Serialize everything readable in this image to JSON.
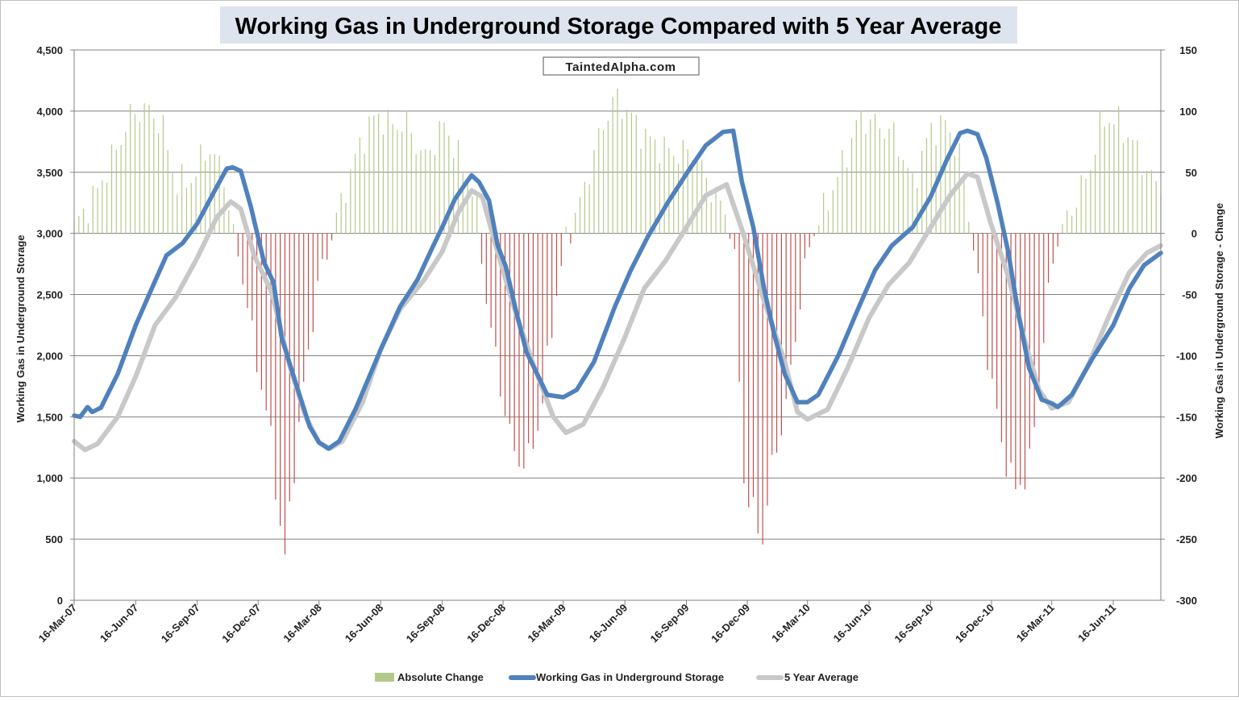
{
  "chart_data": {
    "type": "line",
    "title": "Working Gas in Underground Storage Compared with 5 Year Average",
    "watermark": "TaintedAlpha.com",
    "ylabel": "Working Gas in Underground Storage",
    "y2label": "Working Gas in Underground Storage - Change",
    "ylim": [
      0,
      4500
    ],
    "yticks": [
      "0",
      "500",
      "1,000",
      "1,500",
      "2,000",
      "2,500",
      "3,000",
      "3,500",
      "4,000",
      "4,500"
    ],
    "y2lim": [
      -300,
      150
    ],
    "y2ticks": [
      "-300",
      "-250",
      "-200",
      "-150",
      "-100",
      "-50",
      "0",
      "50",
      "100",
      "150"
    ],
    "xlim": [
      "2007-03-16",
      "2011-08-26"
    ],
    "xticks": [
      {
        "label": "16-Mar-07",
        "date": "2007-03-16"
      },
      {
        "label": "16-Jun-07",
        "date": "2007-06-16"
      },
      {
        "label": "16-Sep-07",
        "date": "2007-09-16"
      },
      {
        "label": "16-Dec-07",
        "date": "2007-12-16"
      },
      {
        "label": "16-Mar-08",
        "date": "2008-03-16"
      },
      {
        "label": "16-Jun-08",
        "date": "2008-06-16"
      },
      {
        "label": "16-Sep-08",
        "date": "2008-09-16"
      },
      {
        "label": "16-Dec-08",
        "date": "2008-12-16"
      },
      {
        "label": "16-Mar-09",
        "date": "2009-03-16"
      },
      {
        "label": "16-Jun-09",
        "date": "2009-06-16"
      },
      {
        "label": "16-Sep-09",
        "date": "2009-09-16"
      },
      {
        "label": "16-Dec-09",
        "date": "2009-12-16"
      },
      {
        "label": "16-Mar-10",
        "date": "2010-03-16"
      },
      {
        "label": "16-Jun-10",
        "date": "2010-06-16"
      },
      {
        "label": "16-Sep-10",
        "date": "2010-09-16"
      },
      {
        "label": "16-Dec-10",
        "date": "2010-12-16"
      },
      {
        "label": "16-Mar-11",
        "date": "2011-03-16"
      },
      {
        "label": "16-Jun-11",
        "date": "2011-06-16"
      }
    ],
    "grid": true,
    "legend_position": "bottom",
    "colors": {
      "positive_change": "#b5c98a",
      "negative_change": "#c0504d",
      "storage": "#4f81bd",
      "average": "#c8c8c8",
      "title_bg": "#dde4ee",
      "grid": "#808080"
    },
    "series": [
      {
        "name": "Absolute Change",
        "kind": "bar",
        "axis": "right",
        "keyframes": [
          [
            "2007-03-16",
            5
          ],
          [
            "2007-04-15",
            30
          ],
          [
            "2007-05-15",
            65
          ],
          [
            "2007-06-10",
            98
          ],
          [
            "2007-07-01",
            102
          ],
          [
            "2007-07-25",
            90
          ],
          [
            "2007-08-15",
            40
          ],
          [
            "2007-09-10",
            45
          ],
          [
            "2007-10-01",
            72
          ],
          [
            "2007-10-25",
            50
          ],
          [
            "2007-11-10",
            -5
          ],
          [
            "2007-11-25",
            -40
          ],
          [
            "2007-12-10",
            -95
          ],
          [
            "2008-01-01",
            -155
          ],
          [
            "2008-01-24",
            -270
          ],
          [
            "2008-02-10",
            -180
          ],
          [
            "2008-02-28",
            -100
          ],
          [
            "2008-03-15",
            -40
          ],
          [
            "2008-03-28",
            -15
          ],
          [
            "2008-04-15",
            20
          ],
          [
            "2008-05-15",
            72
          ],
          [
            "2008-06-10",
            98
          ],
          [
            "2008-07-01",
            88
          ],
          [
            "2008-07-25",
            90
          ],
          [
            "2008-08-20",
            60
          ],
          [
            "2008-09-20",
            90
          ],
          [
            "2008-10-15",
            55
          ],
          [
            "2008-11-05",
            30
          ],
          [
            "2008-11-20",
            -50
          ],
          [
            "2008-12-10",
            -120
          ],
          [
            "2009-01-01",
            -180
          ],
          [
            "2009-01-20",
            -190
          ],
          [
            "2009-02-10",
            -150
          ],
          [
            "2009-02-28",
            -70
          ],
          [
            "2009-03-20",
            -5
          ],
          [
            "2009-04-10",
            25
          ],
          [
            "2009-05-10",
            82
          ],
          [
            "2009-06-01",
            112
          ],
          [
            "2009-06-20",
            100
          ],
          [
            "2009-07-15",
            80
          ],
          [
            "2009-08-10",
            70
          ],
          [
            "2009-09-01",
            65
          ],
          [
            "2009-09-25",
            68
          ],
          [
            "2009-10-20",
            40
          ],
          [
            "2009-11-10",
            20
          ],
          [
            "2009-11-25",
            1
          ],
          [
            "2009-12-10",
            -200
          ],
          [
            "2009-12-25",
            -230
          ],
          [
            "2010-01-08",
            -250
          ],
          [
            "2010-01-25",
            -180
          ],
          [
            "2010-02-10",
            -150
          ],
          [
            "2010-03-01",
            -70
          ],
          [
            "2010-03-20",
            -5
          ],
          [
            "2010-04-10",
            20
          ],
          [
            "2010-05-10",
            60
          ],
          [
            "2010-06-01",
            95
          ],
          [
            "2010-06-25",
            90
          ],
          [
            "2010-07-25",
            80
          ],
          [
            "2010-08-20",
            40
          ],
          [
            "2010-09-16",
            85
          ],
          [
            "2010-10-10",
            90
          ],
          [
            "2010-11-01",
            60
          ],
          [
            "2010-11-20",
            -15
          ],
          [
            "2010-12-10",
            -100
          ],
          [
            "2011-01-01",
            -175
          ],
          [
            "2011-01-20",
            -210
          ],
          [
            "2011-02-10",
            -195
          ],
          [
            "2011-03-01",
            -100
          ],
          [
            "2011-03-20",
            -10
          ],
          [
            "2011-04-15",
            20
          ],
          [
            "2011-05-10",
            50
          ],
          [
            "2011-06-01",
            95
          ],
          [
            "2011-06-25",
            90
          ],
          [
            "2011-07-20",
            70
          ],
          [
            "2011-08-10",
            45
          ],
          [
            "2011-08-26",
            40
          ]
        ]
      },
      {
        "name": "Working Gas in Underground Storage",
        "kind": "line",
        "axis": "left",
        "keyframes": [
          [
            "2007-03-16",
            1510
          ],
          [
            "2007-03-25",
            1500
          ],
          [
            "2007-04-05",
            1580
          ],
          [
            "2007-04-12",
            1540
          ],
          [
            "2007-04-25",
            1575
          ],
          [
            "2007-05-20",
            1850
          ],
          [
            "2007-06-16",
            2250
          ],
          [
            "2007-07-10",
            2550
          ],
          [
            "2007-08-01",
            2820
          ],
          [
            "2007-08-25",
            2920
          ],
          [
            "2007-09-16",
            3080
          ],
          [
            "2007-10-10",
            3330
          ],
          [
            "2007-10-30",
            3530
          ],
          [
            "2007-11-08",
            3540
          ],
          [
            "2007-11-20",
            3510
          ],
          [
            "2007-12-05",
            3220
          ],
          [
            "2007-12-25",
            2760
          ],
          [
            "2008-01-08",
            2600
          ],
          [
            "2008-01-20",
            2150
          ],
          [
            "2008-02-10",
            1780
          ],
          [
            "2008-03-02",
            1420
          ],
          [
            "2008-03-16",
            1290
          ],
          [
            "2008-03-30",
            1240
          ],
          [
            "2008-04-15",
            1300
          ],
          [
            "2008-05-10",
            1570
          ],
          [
            "2008-06-16",
            2050
          ],
          [
            "2008-07-15",
            2400
          ],
          [
            "2008-08-10",
            2620
          ],
          [
            "2008-09-01",
            2880
          ],
          [
            "2008-09-16",
            3050
          ],
          [
            "2008-10-05",
            3280
          ],
          [
            "2008-10-20",
            3400
          ],
          [
            "2008-10-30",
            3475
          ],
          [
            "2008-11-10",
            3420
          ],
          [
            "2008-11-25",
            3270
          ],
          [
            "2008-12-08",
            2900
          ],
          [
            "2008-12-20",
            2730
          ],
          [
            "2009-01-05",
            2350
          ],
          [
            "2009-01-20",
            2030
          ],
          [
            "2009-02-05",
            1850
          ],
          [
            "2009-02-20",
            1680
          ],
          [
            "2009-03-16",
            1660
          ],
          [
            "2009-04-05",
            1720
          ],
          [
            "2009-05-01",
            1950
          ],
          [
            "2009-06-01",
            2400
          ],
          [
            "2009-06-25",
            2700
          ],
          [
            "2009-07-20",
            2970
          ],
          [
            "2009-08-20",
            3260
          ],
          [
            "2009-09-20",
            3520
          ],
          [
            "2009-10-15",
            3720
          ],
          [
            "2009-11-10",
            3830
          ],
          [
            "2009-11-25",
            3840
          ],
          [
            "2009-12-08",
            3420
          ],
          [
            "2009-12-25",
            3050
          ],
          [
            "2010-01-10",
            2550
          ],
          [
            "2010-01-25",
            2180
          ],
          [
            "2010-02-10",
            1850
          ],
          [
            "2010-03-01",
            1620
          ],
          [
            "2010-03-16",
            1620
          ],
          [
            "2010-04-01",
            1680
          ],
          [
            "2010-05-01",
            2000
          ],
          [
            "2010-06-01",
            2400
          ],
          [
            "2010-06-25",
            2700
          ],
          [
            "2010-07-20",
            2900
          ],
          [
            "2010-08-20",
            3050
          ],
          [
            "2010-09-16",
            3300
          ],
          [
            "2010-10-10",
            3600
          ],
          [
            "2010-10-30",
            3820
          ],
          [
            "2010-11-10",
            3840
          ],
          [
            "2010-11-25",
            3810
          ],
          [
            "2010-12-08",
            3620
          ],
          [
            "2010-12-25",
            3250
          ],
          [
            "2011-01-10",
            2850
          ],
          [
            "2011-01-25",
            2350
          ],
          [
            "2011-02-10",
            1900
          ],
          [
            "2011-03-01",
            1640
          ],
          [
            "2011-03-16",
            1610
          ],
          [
            "2011-03-25",
            1580
          ],
          [
            "2011-04-15",
            1680
          ],
          [
            "2011-05-15",
            1970
          ],
          [
            "2011-06-16",
            2250
          ],
          [
            "2011-07-10",
            2550
          ],
          [
            "2011-08-01",
            2740
          ],
          [
            "2011-08-26",
            2840
          ]
        ]
      },
      {
        "name": "5 Year Average",
        "kind": "line",
        "axis": "left",
        "keyframes": [
          [
            "2007-03-16",
            1300
          ],
          [
            "2007-04-01",
            1230
          ],
          [
            "2007-04-20",
            1280
          ],
          [
            "2007-05-20",
            1500
          ],
          [
            "2007-06-16",
            1830
          ],
          [
            "2007-07-15",
            2250
          ],
          [
            "2007-08-15",
            2480
          ],
          [
            "2007-09-16",
            2800
          ],
          [
            "2007-10-15",
            3130
          ],
          [
            "2007-11-05",
            3260
          ],
          [
            "2007-11-20",
            3200
          ],
          [
            "2007-12-10",
            2820
          ],
          [
            "2008-01-05",
            2520
          ],
          [
            "2008-02-01",
            1920
          ],
          [
            "2008-02-25",
            1500
          ],
          [
            "2008-03-16",
            1290
          ],
          [
            "2008-04-01",
            1240
          ],
          [
            "2008-04-20",
            1300
          ],
          [
            "2008-05-20",
            1620
          ],
          [
            "2008-06-16",
            2050
          ],
          [
            "2008-07-15",
            2380
          ],
          [
            "2008-08-20",
            2620
          ],
          [
            "2008-09-16",
            2850
          ],
          [
            "2008-10-10",
            3170
          ],
          [
            "2008-10-30",
            3350
          ],
          [
            "2008-11-15",
            3300
          ],
          [
            "2008-12-05",
            2900
          ],
          [
            "2009-01-01",
            2400
          ],
          [
            "2009-02-01",
            1900
          ],
          [
            "2009-03-01",
            1500
          ],
          [
            "2009-03-20",
            1370
          ],
          [
            "2009-04-15",
            1440
          ],
          [
            "2009-05-15",
            1750
          ],
          [
            "2009-06-16",
            2150
          ],
          [
            "2009-07-15",
            2550
          ],
          [
            "2009-08-15",
            2770
          ],
          [
            "2009-09-16",
            3050
          ],
          [
            "2009-10-15",
            3310
          ],
          [
            "2009-11-15",
            3400
          ],
          [
            "2009-12-10",
            3000
          ],
          [
            "2010-01-10",
            2450
          ],
          [
            "2010-02-10",
            1950
          ],
          [
            "2010-03-01",
            1540
          ],
          [
            "2010-03-16",
            1480
          ],
          [
            "2010-04-15",
            1560
          ],
          [
            "2010-05-15",
            1900
          ],
          [
            "2010-06-16",
            2310
          ],
          [
            "2010-07-15",
            2580
          ],
          [
            "2010-08-15",
            2760
          ],
          [
            "2010-09-16",
            3050
          ],
          [
            "2010-10-15",
            3310
          ],
          [
            "2010-11-10",
            3490
          ],
          [
            "2010-11-25",
            3460
          ],
          [
            "2010-12-15",
            3080
          ],
          [
            "2011-01-10",
            2650
          ],
          [
            "2011-02-05",
            2100
          ],
          [
            "2011-02-25",
            1720
          ],
          [
            "2011-03-16",
            1570
          ],
          [
            "2011-04-10",
            1620
          ],
          [
            "2011-05-10",
            1930
          ],
          [
            "2011-06-10",
            2330
          ],
          [
            "2011-07-10",
            2680
          ],
          [
            "2011-08-05",
            2840
          ],
          [
            "2011-08-26",
            2900
          ]
        ]
      }
    ]
  }
}
